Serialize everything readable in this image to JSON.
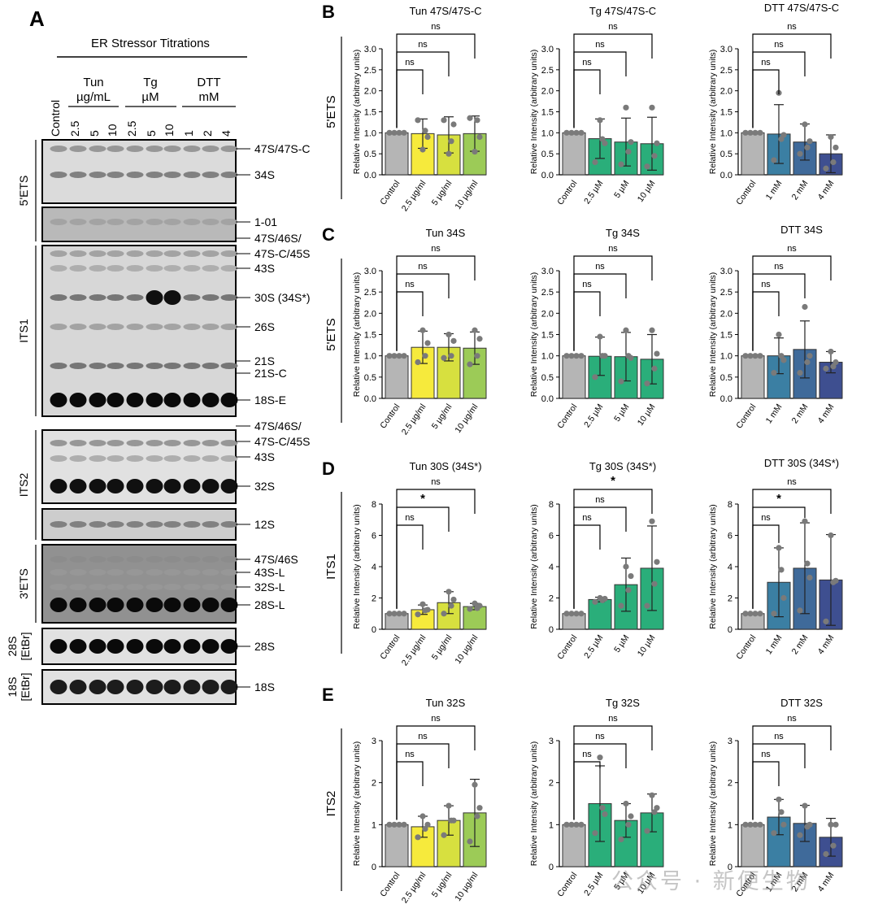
{
  "panel_letters": {
    "A": "A",
    "B": "B",
    "C": "C",
    "D": "D",
    "E": "E"
  },
  "blot": {
    "header": "ER Stressor Titrations",
    "groups": [
      {
        "l1": "Tun",
        "l2": "µg/mL"
      },
      {
        "l1": "Tg",
        "l2": "µM"
      },
      {
        "l1": "DTT",
        "l2": "mM"
      }
    ],
    "lanes": [
      "Control",
      "2.5",
      "5",
      "10",
      "2.5",
      "5",
      "10",
      "1",
      "2",
      "4"
    ],
    "region_labels": [
      "5'ETS",
      "ITS1",
      "ITS2",
      "3'ETS",
      "28S\n[EtBr]",
      "18S\n[EtBr]"
    ],
    "band_labels": [
      "47S/47S-C",
      "34S",
      "1-01",
      "47S/46S/",
      "47S-C/45S",
      "43S",
      "30S (34S*)",
      "26S",
      "21S",
      "21S-C",
      "18S-E",
      "47S/46S/",
      "47S-C/45S",
      "43S",
      "32S",
      "12S",
      "47S/46S",
      "43S-L",
      "32S-L",
      "28S-L",
      "28S",
      "18S"
    ]
  },
  "row_labels": [
    "5'ETS",
    "5'ETS",
    "ITS1",
    "ITS2"
  ],
  "ylabel": "Relative Intensity (arbitrary units)",
  "colors": {
    "control": "#b5b5b5",
    "tun": [
      "#f6ea3c",
      "#d7e03f",
      "#9ccb57"
    ],
    "tg": "#2aae7a",
    "dtt": [
      "#3b7fa3",
      "#3f6a9a",
      "#3e4f90"
    ],
    "dot": "#7a7a7a"
  },
  "chart_data": [
    {
      "panel": "B",
      "type": "bar",
      "title": "Tun 47S/47S-C",
      "categories": [
        "Control",
        "2.5 µg/ml",
        "5 µg/ml",
        "10 µg/ml"
      ],
      "values": [
        1.0,
        0.98,
        0.95,
        0.98
      ],
      "errors": [
        0,
        0.35,
        0.43,
        0.42
      ],
      "points": [
        [
          1,
          1,
          1,
          1
        ],
        [
          0.6,
          1.3,
          1.05,
          0.9
        ],
        [
          0.5,
          1.3,
          0.8,
          1.2
        ],
        [
          0.55,
          1.35,
          1.3,
          0.9
        ]
      ],
      "ylim": [
        0,
        3.0
      ],
      "yticks": [
        0.0,
        0.5,
        1.0,
        1.5,
        2.0,
        2.5,
        3.0
      ],
      "brackets": [
        [
          "ns",
          1
        ],
        [
          "ns",
          2
        ],
        [
          "ns",
          3
        ]
      ]
    },
    {
      "panel": "B",
      "type": "bar",
      "title": "Tg 47S/47S-C",
      "categories": [
        "Control",
        "2.5 µM",
        "5 µM",
        "10 µM"
      ],
      "values": [
        1.0,
        0.86,
        0.78,
        0.74
      ],
      "errors": [
        0,
        0.47,
        0.57,
        0.63
      ],
      "points": [
        [
          1,
          1,
          1,
          1
        ],
        [
          1.3,
          0.3,
          0.85,
          0.75
        ],
        [
          1.6,
          0.25,
          0.55,
          0.78
        ],
        [
          1.6,
          0.2,
          0.45,
          0.75
        ]
      ],
      "ylim": [
        0,
        3.0
      ],
      "yticks": [
        0.0,
        0.5,
        1.0,
        1.5,
        2.0,
        2.5,
        3.0
      ],
      "brackets": [
        [
          "ns",
          1
        ],
        [
          "ns",
          2
        ],
        [
          "ns",
          3
        ]
      ]
    },
    {
      "panel": "B",
      "type": "bar",
      "title": "DTT 47S/47S-C",
      "categories": [
        "Control",
        "1 mM",
        "2 mM",
        "4 mM"
      ],
      "values": [
        1.0,
        0.97,
        0.78,
        0.5
      ],
      "errors": [
        0,
        0.7,
        0.43,
        0.45
      ],
      "points": [
        [
          1,
          1,
          1,
          1
        ],
        [
          1.95,
          0.35,
          0.85,
          0.95
        ],
        [
          1.2,
          0.5,
          0.65,
          0.8
        ],
        [
          0.9,
          0.15,
          0.3,
          0.65
        ]
      ],
      "ylim": [
        0,
        3.0
      ],
      "yticks": [
        0.0,
        0.5,
        1.0,
        1.5,
        2.0,
        2.5,
        3.0
      ],
      "brackets": [
        [
          "ns",
          1
        ],
        [
          "ns",
          2
        ],
        [
          "ns",
          3
        ]
      ]
    },
    {
      "panel": "C",
      "type": "bar",
      "title": "Tun 34S",
      "categories": [
        "Control",
        "2.5 µg/ml",
        "5 µg/ml",
        "10 µg/ml"
      ],
      "values": [
        1.0,
        1.2,
        1.2,
        1.18
      ],
      "errors": [
        0,
        0.38,
        0.32,
        0.38
      ],
      "points": [
        [
          1,
          1,
          1,
          1
        ],
        [
          1.6,
          0.85,
          1.0,
          1.3
        ],
        [
          1.5,
          0.95,
          1.0,
          1.35
        ],
        [
          1.6,
          0.8,
          1.0,
          1.4
        ]
      ],
      "ylim": [
        0,
        3.0
      ],
      "yticks": [
        0.0,
        0.5,
        1.0,
        1.5,
        2.0,
        2.5,
        3.0
      ],
      "brackets": [
        [
          "ns",
          1
        ],
        [
          "ns",
          2
        ],
        [
          "ns",
          3
        ]
      ]
    },
    {
      "panel": "C",
      "type": "bar",
      "title": "Tg 34S",
      "categories": [
        "Control",
        "2.5 µM",
        "5 µM",
        "10 µM"
      ],
      "values": [
        1.0,
        0.99,
        0.98,
        0.92
      ],
      "errors": [
        0,
        0.45,
        0.57,
        0.58
      ],
      "points": [
        [
          1,
          1,
          1,
          1
        ],
        [
          1.45,
          0.5,
          1.0,
          1.0
        ],
        [
          1.6,
          0.4,
          1.0,
          0.95
        ],
        [
          1.6,
          0.35,
          0.7,
          1.05
        ]
      ],
      "ylim": [
        0,
        3.0
      ],
      "yticks": [
        0.0,
        0.5,
        1.0,
        1.5,
        2.0,
        2.5,
        3.0
      ],
      "brackets": [
        [
          "ns",
          1
        ],
        [
          "ns",
          2
        ],
        [
          "ns",
          3
        ]
      ]
    },
    {
      "panel": "C",
      "type": "bar",
      "title": "DTT 34S",
      "categories": [
        "Control",
        "1 mM",
        "2 mM",
        "4 mM"
      ],
      "values": [
        1.0,
        1.0,
        1.15,
        0.85
      ],
      "errors": [
        0,
        0.42,
        0.67,
        0.25
      ],
      "points": [
        [
          1,
          1,
          1,
          1
        ],
        [
          1.5,
          0.6,
          1.0,
          0.9
        ],
        [
          2.15,
          0.6,
          0.85,
          1.0
        ],
        [
          1.1,
          0.7,
          0.75,
          0.85
        ]
      ],
      "ylim": [
        0,
        3.0
      ],
      "yticks": [
        0.0,
        0.5,
        1.0,
        1.5,
        2.0,
        2.5,
        3.0
      ],
      "brackets": [
        [
          "ns",
          1
        ],
        [
          "ns",
          2
        ],
        [
          "ns",
          3
        ]
      ]
    },
    {
      "panel": "D",
      "type": "bar",
      "title": "Tun 30S (34S*)",
      "categories": [
        "Control",
        "2.5 µg/ml",
        "5 µg/ml",
        "10 µg/ml"
      ],
      "values": [
        1.0,
        1.25,
        1.7,
        1.45
      ],
      "errors": [
        0,
        0.3,
        0.7,
        0.2
      ],
      "points": [
        [
          1,
          1,
          1,
          1
        ],
        [
          1.6,
          0.95,
          1.2,
          1.25
        ],
        [
          2.4,
          1.0,
          1.5,
          1.9
        ],
        [
          1.65,
          1.3,
          1.35,
          1.5
        ]
      ],
      "ylim": [
        0,
        8
      ],
      "yticks": [
        0,
        2,
        4,
        6,
        8
      ],
      "brackets": [
        [
          "ns",
          1
        ],
        [
          "*",
          2
        ],
        [
          "ns",
          3
        ]
      ]
    },
    {
      "panel": "D",
      "type": "bar",
      "title": "Tg 30S (34S*)",
      "categories": [
        "Control",
        "2.5 µM",
        "5 µM",
        "10 µM"
      ],
      "values": [
        1.0,
        1.9,
        2.85,
        3.9
      ],
      "errors": [
        0,
        0.15,
        1.7,
        2.7
      ],
      "points": [
        [
          1,
          1,
          1,
          1
        ],
        [
          2.0,
          1.75,
          1.85,
          1.95
        ],
        [
          4.0,
          1.5,
          2.5,
          3.4
        ],
        [
          6.9,
          1.5,
          2.9,
          4.3
        ]
      ],
      "ylim": [
        0,
        8
      ],
      "yticks": [
        0,
        2,
        4,
        6,
        8
      ],
      "brackets": [
        [
          "ns",
          1
        ],
        [
          "ns",
          2
        ],
        [
          "*",
          3
        ]
      ]
    },
    {
      "panel": "D",
      "type": "bar",
      "title": "DTT 30S (34S*)",
      "categories": [
        "Control",
        "1 mM",
        "2 mM",
        "4 mM"
      ],
      "values": [
        1.0,
        3.0,
        3.9,
        3.15
      ],
      "errors": [
        0,
        2.2,
        2.9,
        2.9
      ],
      "points": [
        [
          1,
          1,
          1,
          1
        ],
        [
          5.2,
          1.0,
          3.8,
          2.0
        ],
        [
          6.9,
          1.2,
          4.2,
          3.3
        ],
        [
          6.0,
          0.5,
          3.0,
          3.1
        ]
      ],
      "ylim": [
        0,
        8
      ],
      "yticks": [
        0,
        2,
        4,
        6,
        8
      ],
      "brackets": [
        [
          "ns",
          1
        ],
        [
          "*",
          2
        ],
        [
          "ns",
          3
        ]
      ]
    },
    {
      "panel": "E",
      "type": "bar",
      "title": "Tun 32S",
      "categories": [
        "Control",
        "2.5 µg/ml",
        "5 µg/ml",
        "10 µg/ml"
      ],
      "values": [
        1.0,
        0.95,
        1.1,
        1.28
      ],
      "errors": [
        0,
        0.25,
        0.35,
        0.8
      ],
      "points": [
        [
          1,
          1,
          1,
          1
        ],
        [
          1.2,
          0.7,
          0.9,
          1.0
        ],
        [
          1.45,
          0.75,
          1.1,
          1.1
        ],
        [
          1.95,
          0.6,
          1.2,
          1.4
        ]
      ],
      "ylim": [
        0,
        3
      ],
      "yticks": [
        0,
        1,
        2,
        3
      ],
      "brackets": [
        [
          "ns",
          1
        ],
        [
          "ns",
          2
        ],
        [
          "ns",
          3
        ]
      ]
    },
    {
      "panel": "E",
      "type": "bar",
      "title": "Tg 32S",
      "categories": [
        "Control",
        "2.5 µM",
        "5 µM",
        "10 µM"
      ],
      "values": [
        1.0,
        1.5,
        1.1,
        1.28
      ],
      "errors": [
        0,
        0.9,
        0.4,
        0.45
      ],
      "points": [
        [
          1,
          1,
          1,
          1
        ],
        [
          2.6,
          0.8,
          1.4,
          1.25
        ],
        [
          1.5,
          0.65,
          1.0,
          1.2
        ],
        [
          1.7,
          0.85,
          1.3,
          1.4
        ]
      ],
      "ylim": [
        0,
        3
      ],
      "yticks": [
        0,
        1,
        2,
        3
      ],
      "brackets": [
        [
          "ns",
          1
        ],
        [
          "ns",
          2
        ],
        [
          "ns",
          3
        ]
      ]
    },
    {
      "panel": "E",
      "type": "bar",
      "title": "DTT 32S",
      "categories": [
        "Control",
        "1 mM",
        "2 mM",
        "4 mM"
      ],
      "values": [
        1.0,
        1.18,
        1.03,
        0.7
      ],
      "errors": [
        0,
        0.42,
        0.43,
        0.45
      ],
      "points": [
        [
          1,
          1,
          1,
          1
        ],
        [
          1.6,
          0.8,
          1.3,
          1.0
        ],
        [
          1.45,
          0.75,
          0.95,
          1.0
        ],
        [
          1.0,
          0.3,
          0.5,
          1.0
        ]
      ],
      "ylim": [
        0,
        3
      ],
      "yticks": [
        0,
        1,
        2,
        3
      ],
      "brackets": [
        [
          "ns",
          1
        ],
        [
          "ns",
          2
        ],
        [
          "ns",
          3
        ]
      ]
    }
  ],
  "watermark": "公众号 · 新便生物"
}
